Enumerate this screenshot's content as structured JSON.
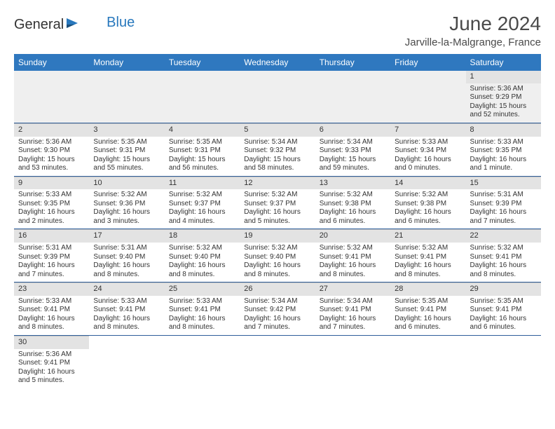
{
  "logo": {
    "text1": "General",
    "text2": "Blue",
    "icon_color": "#2878bd"
  },
  "title": "June 2024",
  "location": "Jarville-la-Malgrange, France",
  "colors": {
    "header_bg": "#2f78bf",
    "header_text": "#ffffff",
    "daynum_bg": "#e3e3e3",
    "row_divider": "#2f5e9a",
    "text": "#333333"
  },
  "weekdays": [
    "Sunday",
    "Monday",
    "Tuesday",
    "Wednesday",
    "Thursday",
    "Friday",
    "Saturday"
  ],
  "weeks": [
    [
      null,
      null,
      null,
      null,
      null,
      null,
      {
        "d": "1",
        "sr": "5:36 AM",
        "ss": "9:29 PM",
        "dl": "15 hours and 52 minutes."
      }
    ],
    [
      {
        "d": "2",
        "sr": "5:36 AM",
        "ss": "9:30 PM",
        "dl": "15 hours and 53 minutes."
      },
      {
        "d": "3",
        "sr": "5:35 AM",
        "ss": "9:31 PM",
        "dl": "15 hours and 55 minutes."
      },
      {
        "d": "4",
        "sr": "5:35 AM",
        "ss": "9:31 PM",
        "dl": "15 hours and 56 minutes."
      },
      {
        "d": "5",
        "sr": "5:34 AM",
        "ss": "9:32 PM",
        "dl": "15 hours and 58 minutes."
      },
      {
        "d": "6",
        "sr": "5:34 AM",
        "ss": "9:33 PM",
        "dl": "15 hours and 59 minutes."
      },
      {
        "d": "7",
        "sr": "5:33 AM",
        "ss": "9:34 PM",
        "dl": "16 hours and 0 minutes."
      },
      {
        "d": "8",
        "sr": "5:33 AM",
        "ss": "9:35 PM",
        "dl": "16 hours and 1 minute."
      }
    ],
    [
      {
        "d": "9",
        "sr": "5:33 AM",
        "ss": "9:35 PM",
        "dl": "16 hours and 2 minutes."
      },
      {
        "d": "10",
        "sr": "5:32 AM",
        "ss": "9:36 PM",
        "dl": "16 hours and 3 minutes."
      },
      {
        "d": "11",
        "sr": "5:32 AM",
        "ss": "9:37 PM",
        "dl": "16 hours and 4 minutes."
      },
      {
        "d": "12",
        "sr": "5:32 AM",
        "ss": "9:37 PM",
        "dl": "16 hours and 5 minutes."
      },
      {
        "d": "13",
        "sr": "5:32 AM",
        "ss": "9:38 PM",
        "dl": "16 hours and 6 minutes."
      },
      {
        "d": "14",
        "sr": "5:32 AM",
        "ss": "9:38 PM",
        "dl": "16 hours and 6 minutes."
      },
      {
        "d": "15",
        "sr": "5:31 AM",
        "ss": "9:39 PM",
        "dl": "16 hours and 7 minutes."
      }
    ],
    [
      {
        "d": "16",
        "sr": "5:31 AM",
        "ss": "9:39 PM",
        "dl": "16 hours and 7 minutes."
      },
      {
        "d": "17",
        "sr": "5:31 AM",
        "ss": "9:40 PM",
        "dl": "16 hours and 8 minutes."
      },
      {
        "d": "18",
        "sr": "5:32 AM",
        "ss": "9:40 PM",
        "dl": "16 hours and 8 minutes."
      },
      {
        "d": "19",
        "sr": "5:32 AM",
        "ss": "9:40 PM",
        "dl": "16 hours and 8 minutes."
      },
      {
        "d": "20",
        "sr": "5:32 AM",
        "ss": "9:41 PM",
        "dl": "16 hours and 8 minutes."
      },
      {
        "d": "21",
        "sr": "5:32 AM",
        "ss": "9:41 PM",
        "dl": "16 hours and 8 minutes."
      },
      {
        "d": "22",
        "sr": "5:32 AM",
        "ss": "9:41 PM",
        "dl": "16 hours and 8 minutes."
      }
    ],
    [
      {
        "d": "23",
        "sr": "5:33 AM",
        "ss": "9:41 PM",
        "dl": "16 hours and 8 minutes."
      },
      {
        "d": "24",
        "sr": "5:33 AM",
        "ss": "9:41 PM",
        "dl": "16 hours and 8 minutes."
      },
      {
        "d": "25",
        "sr": "5:33 AM",
        "ss": "9:41 PM",
        "dl": "16 hours and 8 minutes."
      },
      {
        "d": "26",
        "sr": "5:34 AM",
        "ss": "9:42 PM",
        "dl": "16 hours and 7 minutes."
      },
      {
        "d": "27",
        "sr": "5:34 AM",
        "ss": "9:41 PM",
        "dl": "16 hours and 7 minutes."
      },
      {
        "d": "28",
        "sr": "5:35 AM",
        "ss": "9:41 PM",
        "dl": "16 hours and 6 minutes."
      },
      {
        "d": "29",
        "sr": "5:35 AM",
        "ss": "9:41 PM",
        "dl": "16 hours and 6 minutes."
      }
    ],
    [
      {
        "d": "30",
        "sr": "5:36 AM",
        "ss": "9:41 PM",
        "dl": "16 hours and 5 minutes."
      },
      null,
      null,
      null,
      null,
      null,
      null
    ]
  ],
  "labels": {
    "sunrise": "Sunrise:",
    "sunset": "Sunset:",
    "daylight": "Daylight:"
  }
}
